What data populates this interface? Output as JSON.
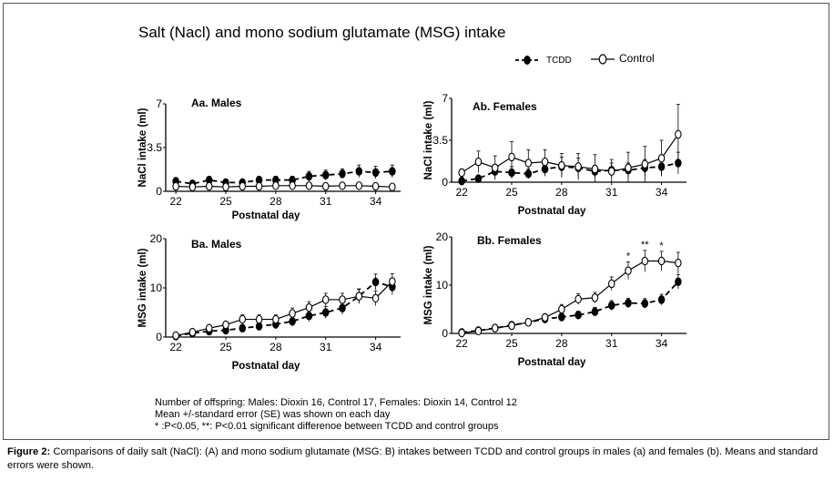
{
  "figure": {
    "title": "Salt (Nacl) and mono sodium glutamate (MSG) intake",
    "legend": [
      {
        "label": "TCDD",
        "marker": "filled",
        "line": "dashed"
      },
      {
        "label": "Control",
        "marker": "open",
        "line": "solid"
      }
    ],
    "notes": [
      "Number  of offspring:  Males: Dioxin  16, Control 17, Females: Dioxin 14, Control 12",
      "Mean +/-standard error (SE) was shown on each  day",
      "* :P<0.05, **: P<0.01 significant differenoe between TCDD and control groups"
    ],
    "caption_label": "Figure 2:",
    "caption_text": " Comparisons of daily salt (NaCl): (A) and mono sodium glutamate (MSG: B) intakes between TCDD and control groups in males (a) and females (b). Means and standard errors were shown."
  },
  "chart_data": [
    {
      "id": "Aa",
      "type": "line",
      "title": "Aa. Males",
      "xlabel": "Postnatal day",
      "ylabel": "NaCl intake (ml)",
      "xlim": [
        21.5,
        35.5
      ],
      "ylim": [
        0,
        7
      ],
      "xticks": [
        22,
        25,
        28,
        31,
        34
      ],
      "yticks": [
        0,
        3.5,
        7
      ],
      "ytick_labels": [
        "0",
        "3.5",
        "7"
      ],
      "x": [
        22,
        23,
        24,
        25,
        26,
        27,
        28,
        29,
        30,
        31,
        32,
        33,
        34,
        35
      ],
      "series": [
        {
          "name": "TCDD",
          "values": [
            0.8,
            0.6,
            0.9,
            0.7,
            0.7,
            0.9,
            0.9,
            0.9,
            1.2,
            1.3,
            1.4,
            1.6,
            1.5,
            1.6
          ],
          "err": [
            0.3,
            0.2,
            0.3,
            0.2,
            0.2,
            0.3,
            0.3,
            0.3,
            0.4,
            0.4,
            0.4,
            0.5,
            0.5,
            0.5
          ]
        },
        {
          "name": "Control",
          "values": [
            0.4,
            0.35,
            0.4,
            0.35,
            0.4,
            0.4,
            0.45,
            0.45,
            0.45,
            0.4,
            0.45,
            0.45,
            0.4,
            0.35
          ],
          "err": [
            0.1,
            0.1,
            0.1,
            0.1,
            0.1,
            0.1,
            0.1,
            0.1,
            0.1,
            0.1,
            0.1,
            0.1,
            0.1,
            0.1
          ]
        }
      ],
      "annotations": []
    },
    {
      "id": "Ab",
      "type": "line",
      "title": "Ab. Females",
      "xlabel": "Postnatal day",
      "ylabel": "NaCl intake (ml)",
      "xlim": [
        21.5,
        35.5
      ],
      "ylim": [
        0,
        7
      ],
      "xticks": [
        22,
        25,
        28,
        31,
        34
      ],
      "yticks": [
        0,
        3.5,
        7
      ],
      "ytick_labels": [
        "0",
        "3.5",
        "7"
      ],
      "x": [
        22,
        23,
        24,
        25,
        26,
        27,
        28,
        29,
        30,
        31,
        32,
        33,
        34,
        35
      ],
      "series": [
        {
          "name": "TCDD",
          "values": [
            0.1,
            0.3,
            0.9,
            0.8,
            0.7,
            1.1,
            1.3,
            1.2,
            0.9,
            1.0,
            1.0,
            1.2,
            1.3,
            1.6
          ],
          "err": [
            0.1,
            0.2,
            0.5,
            0.5,
            0.4,
            0.6,
            0.8,
            0.8,
            0.5,
            0.6,
            0.6,
            0.7,
            0.8,
            0.9
          ]
        },
        {
          "name": "Control",
          "values": [
            0.8,
            1.7,
            1.2,
            2.1,
            1.6,
            1.7,
            1.4,
            1.3,
            1.1,
            0.9,
            1.2,
            1.5,
            2.0,
            4.0
          ],
          "err": [
            0.3,
            0.9,
            1.0,
            1.3,
            1.1,
            1.0,
            1.0,
            1.1,
            1.2,
            1.0,
            1.3,
            1.5,
            1.5,
            2.5
          ]
        }
      ],
      "annotations": []
    },
    {
      "id": "Ba",
      "type": "line",
      "title": "Ba. Males",
      "xlabel": "Postnatal day",
      "ylabel": "MSG intake (ml)",
      "xlim": [
        21.5,
        35.5
      ],
      "ylim": [
        0,
        20
      ],
      "xticks": [
        22,
        25,
        28,
        31,
        34
      ],
      "yticks": [
        0,
        10,
        20
      ],
      "ytick_labels": [
        "0",
        "10",
        "20"
      ],
      "x": [
        22,
        23,
        24,
        25,
        26,
        27,
        28,
        29,
        30,
        31,
        32,
        33,
        34,
        35
      ],
      "series": [
        {
          "name": "TCDD",
          "values": [
            0.2,
            0.8,
            1.2,
            1.4,
            1.8,
            2.2,
            2.6,
            3.2,
            4.3,
            5.0,
            5.9,
            8.3,
            11.2,
            10.2
          ],
          "err": [
            0.3,
            0.4,
            0.5,
            0.6,
            0.7,
            0.8,
            0.9,
            1.0,
            1.1,
            1.2,
            1.3,
            1.5,
            1.6,
            1.6
          ]
        },
        {
          "name": "Control",
          "values": [
            0.3,
            1.0,
            1.8,
            2.5,
            3.6,
            3.6,
            3.6,
            4.8,
            6.0,
            7.6,
            7.6,
            8.3,
            7.9,
            11.3
          ],
          "err": [
            0.3,
            0.5,
            0.6,
            0.7,
            0.9,
            0.9,
            0.9,
            1.1,
            1.2,
            1.3,
            1.3,
            1.4,
            1.5,
            1.6
          ]
        }
      ],
      "annotations": []
    },
    {
      "id": "Bb",
      "type": "line",
      "title": "Bb. Females",
      "xlabel": "Postnatal day",
      "ylabel": "MSG intake (ml)",
      "xlim": [
        21.5,
        35.5
      ],
      "ylim": [
        0,
        20
      ],
      "xticks": [
        22,
        25,
        28,
        31,
        34
      ],
      "yticks": [
        0,
        10,
        20
      ],
      "ytick_labels": [
        "0",
        "10",
        "20"
      ],
      "x": [
        22,
        23,
        24,
        25,
        26,
        27,
        28,
        29,
        30,
        31,
        32,
        33,
        34,
        35
      ],
      "series": [
        {
          "name": "TCDD",
          "values": [
            0.2,
            0.6,
            1.1,
            1.7,
            2.3,
            3.0,
            3.4,
            3.8,
            4.5,
            5.8,
            6.3,
            6.2,
            7.0,
            10.7
          ],
          "err": [
            0.3,
            0.3,
            0.4,
            0.5,
            0.6,
            0.7,
            0.8,
            0.8,
            0.9,
            1.0,
            1.0,
            1.0,
            1.1,
            1.5
          ]
        },
        {
          "name": "Control",
          "values": [
            0.1,
            0.5,
            1.1,
            1.6,
            2.3,
            3.3,
            5.0,
            7.1,
            7.4,
            10.3,
            13.0,
            15.0,
            15.0,
            14.6
          ],
          "err": [
            0.2,
            0.3,
            0.4,
            0.5,
            0.6,
            0.8,
            1.0,
            1.1,
            1.1,
            1.4,
            1.8,
            2.2,
            2.0,
            2.2
          ]
        }
      ],
      "annotations": [
        {
          "x": 32,
          "text": "*"
        },
        {
          "x": 33,
          "text": "**"
        },
        {
          "x": 34,
          "text": "*"
        }
      ]
    }
  ]
}
